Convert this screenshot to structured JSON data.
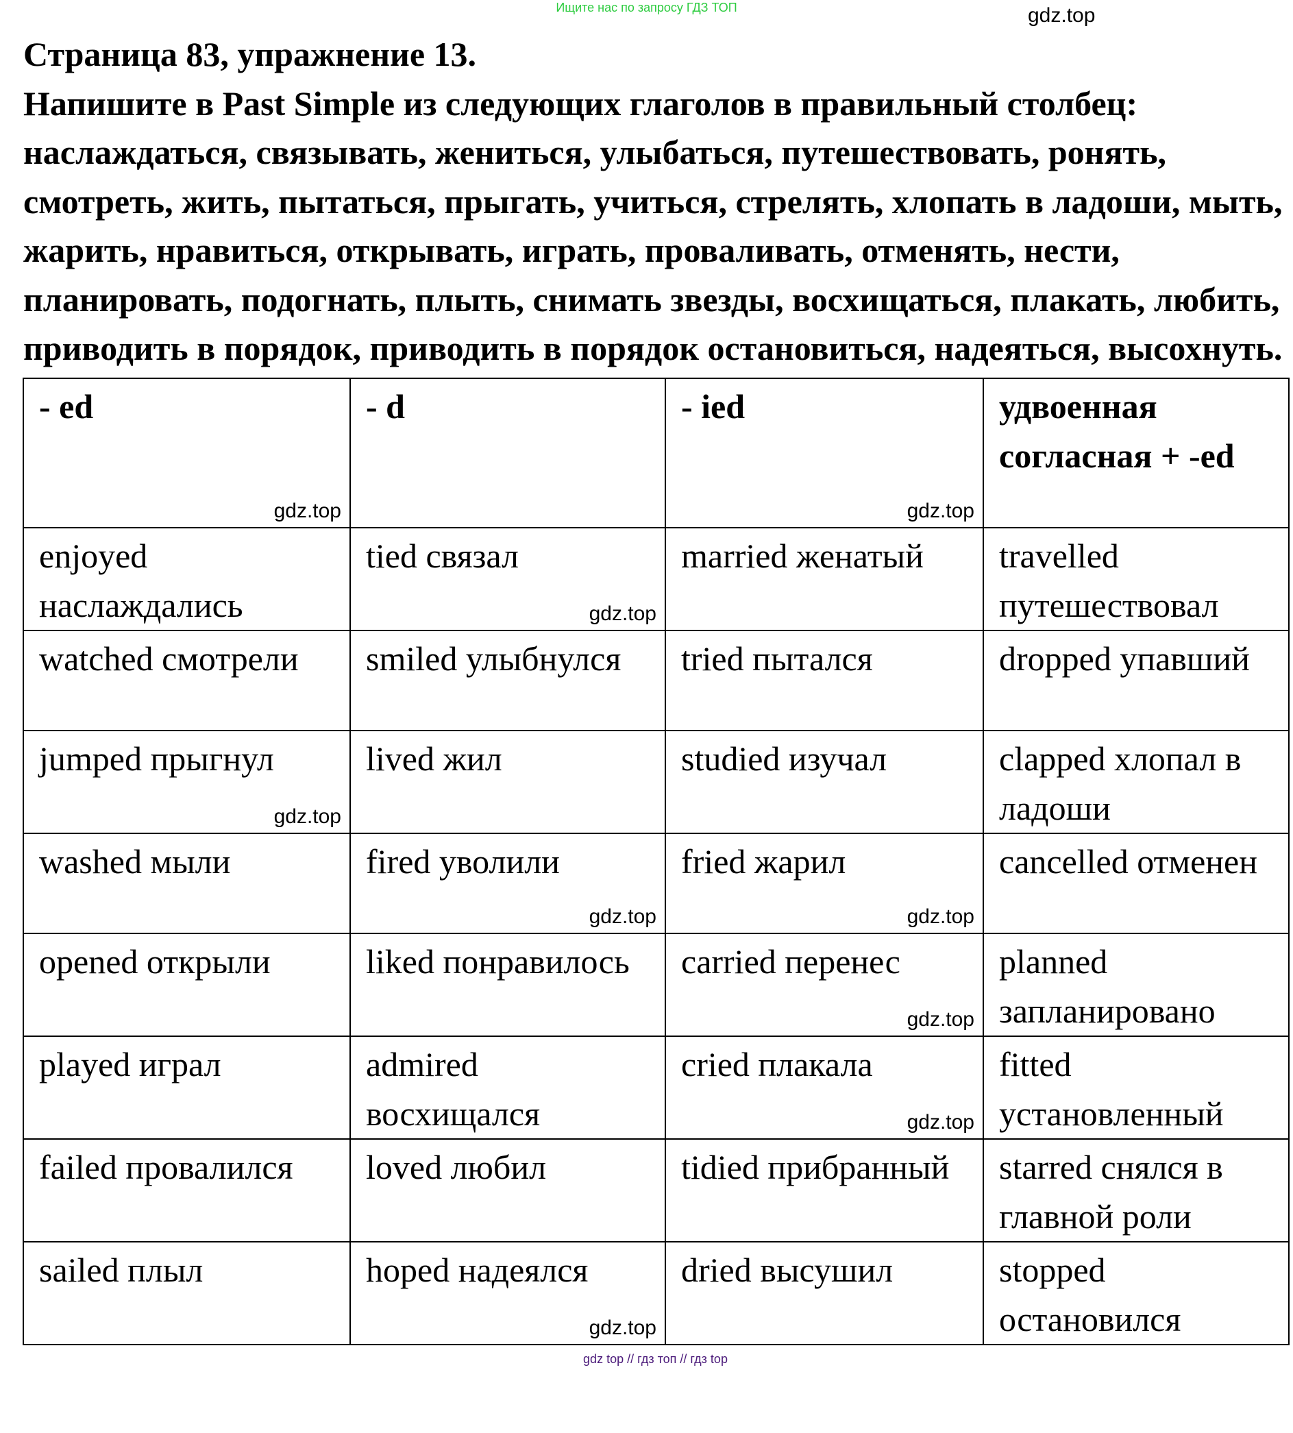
{
  "top_note": "Ищите нас по запросу ГДЗ ТОП",
  "title": "Страница 83, упражнение 13.",
  "task": "Напишите в Past Simple из следующих глаголов в правильный столбец: наслаждаться, связывать, жениться, улыбаться, путешествовать, ронять, смотреть, жить, пытаться, прыгать, учиться, стрелять, хлопать в ладоши, мыть, жарить, нравиться, открывать, играть, проваливать, отменять, нести, планировать, подогнать, плыть, снимать звезды, восхищаться, плакать, любить, приводить в порядок, приводить в порядок остановиться, надеяться, высохнуть.",
  "table": {
    "headers": [
      "- ed",
      "- d",
      "- ied",
      "удвоенная согласная + -ed"
    ],
    "rows": [
      [
        "enjoyed наслаждались",
        "tied связал",
        "married женатый",
        "travelled путешествовал"
      ],
      [
        "watched смотрели",
        "smiled улыбнулся",
        "tried пытался",
        "dropped упавший"
      ],
      [
        "jumped прыгнул",
        "lived жил",
        "studied изучал",
        "clapped хлопал в ладоши"
      ],
      [
        "washed мыли",
        "fired уволили",
        "fried жарил",
        "cancelled отменен"
      ],
      [
        "opened открыли",
        "liked понравилось",
        "carried перенес",
        "planned запланировано"
      ],
      [
        "played играл",
        "admired восхищался",
        "cried плакала",
        "fitted установленный"
      ],
      [
        "failed провалился",
        "loved любил",
        "tidied прибранный",
        "starred снялся в главной роли"
      ],
      [
        "sailed плыл",
        "hoped надеялся",
        "dried высушил",
        "stopped остановился"
      ]
    ]
  },
  "watermark": "gdz.top",
  "bottom_note": "gdz top  //  гдз топ  //  гдз top"
}
